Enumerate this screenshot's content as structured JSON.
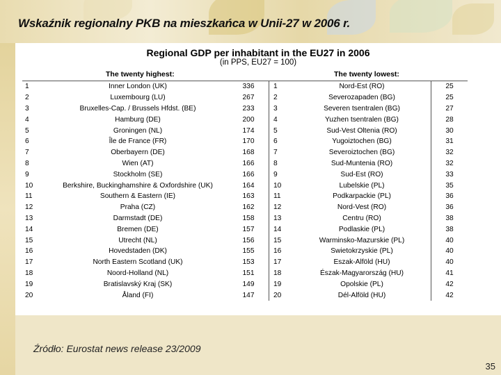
{
  "slide": {
    "title": "Wskaźnik regionalny PKB na mieszkańca w Unii-27 w 2006 r.",
    "source": "Źródło: Eurostat news release 23/2009",
    "page_number": "35"
  },
  "table": {
    "title": "Regional GDP per inhabitant in the EU27 in 2006",
    "subtitle": "(in PPS, EU27 = 100)",
    "highest_header": "The twenty highest:",
    "lowest_header": "The twenty lowest:",
    "rows": [
      {
        "rank_h": "1",
        "region_h": "Inner London (UK)",
        "value_h": "336",
        "rank_l": "1",
        "region_l": "Nord-Est (RO)",
        "value_l": "25"
      },
      {
        "rank_h": "2",
        "region_h": "Luxembourg (LU)",
        "value_h": "267",
        "rank_l": "2",
        "region_l": "Severozapaden (BG)",
        "value_l": "25"
      },
      {
        "rank_h": "3",
        "region_h": "Bruxelles-Cap. / Brussels Hfdst. (BE)",
        "value_h": "233",
        "rank_l": "3",
        "region_l": "Severen tsentralen (BG)",
        "value_l": "27"
      },
      {
        "rank_h": "4",
        "region_h": "Hamburg (DE)",
        "value_h": "200",
        "rank_l": "4",
        "region_l": "Yuzhen tsentralen (BG)",
        "value_l": "28"
      },
      {
        "rank_h": "5",
        "region_h": "Groningen (NL)",
        "value_h": "174",
        "rank_l": "5",
        "region_l": "Sud-Vest Oltenia (RO)",
        "value_l": "30"
      },
      {
        "rank_h": "6",
        "region_h": "Île de France (FR)",
        "value_h": "170",
        "rank_l": "6",
        "region_l": "Yugoiztochen (BG)",
        "value_l": "31"
      },
      {
        "rank_h": "7",
        "region_h": "Oberbayern (DE)",
        "value_h": "168",
        "rank_l": "7",
        "region_l": "Severoiztochen (BG)",
        "value_l": "32"
      },
      {
        "rank_h": "8",
        "region_h": "Wien (AT)",
        "value_h": "166",
        "rank_l": "8",
        "region_l": "Sud-Muntenia (RO)",
        "value_l": "32"
      },
      {
        "rank_h": "9",
        "region_h": "Stockholm (SE)",
        "value_h": "166",
        "rank_l": "9",
        "region_l": "Sud-Est (RO)",
        "value_l": "33"
      },
      {
        "rank_h": "10",
        "region_h": "Berkshire, Buckinghamshire & Oxfordshire (UK)",
        "value_h": "164",
        "rank_l": "10",
        "region_l": "Lubelskie (PL)",
        "value_l": "35"
      },
      {
        "rank_h": "11",
        "region_h": "Southern & Eastern (IE)",
        "value_h": "163",
        "rank_l": "11",
        "region_l": "Podkarpackie (PL)",
        "value_l": "36"
      },
      {
        "rank_h": "12",
        "region_h": "Praha (CZ)",
        "value_h": "162",
        "rank_l": "12",
        "region_l": "Nord-Vest (RO)",
        "value_l": "36"
      },
      {
        "rank_h": "13",
        "region_h": "Darmstadt (DE)",
        "value_h": "158",
        "rank_l": "13",
        "region_l": "Centru (RO)",
        "value_l": "38"
      },
      {
        "rank_h": "14",
        "region_h": "Bremen (DE)",
        "value_h": "157",
        "rank_l": "14",
        "region_l": "Podlaskie (PL)",
        "value_l": "38"
      },
      {
        "rank_h": "15",
        "region_h": "Utrecht (NL)",
        "value_h": "156",
        "rank_l": "15",
        "region_l": "Warminsko-Mazurskie (PL)",
        "value_l": "40"
      },
      {
        "rank_h": "16",
        "region_h": "Hovedstaden (DK)",
        "value_h": "155",
        "rank_l": "16",
        "region_l": "Swietokrzyskie (PL)",
        "value_l": "40"
      },
      {
        "rank_h": "17",
        "region_h": "North Eastern Scotland (UK)",
        "value_h": "153",
        "rank_l": "17",
        "region_l": "Eszak-Alföld (HU)",
        "value_l": "40"
      },
      {
        "rank_h": "18",
        "region_h": "Noord-Holland (NL)",
        "value_h": "151",
        "rank_l": "18",
        "region_l": "Észak-Magyarország (HU)",
        "value_l": "41"
      },
      {
        "rank_h": "19",
        "region_h": "Bratislavský Kraj (SK)",
        "value_h": "149",
        "rank_l": "19",
        "region_l": "Opolskie (PL)",
        "value_l": "42"
      },
      {
        "rank_h": "20",
        "region_h": "Åland (FI)",
        "value_h": "147",
        "rank_l": "20",
        "region_l": "Dél-Alföld (HU)",
        "value_l": "42"
      }
    ]
  }
}
